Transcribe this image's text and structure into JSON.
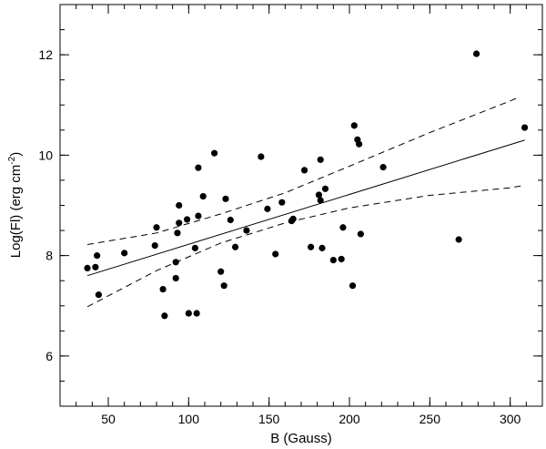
{
  "chart_data": {
    "type": "scatter",
    "title": "",
    "xlabel": "B (Gauss)",
    "ylabel_main": "Log(Fl) (erg cm",
    "ylabel_sup": "-2",
    "ylabel_tail": ")",
    "xlim": [
      20,
      320
    ],
    "ylim": [
      5,
      13
    ],
    "xticks": [
      50,
      100,
      150,
      200,
      250,
      300
    ],
    "yticks": [
      6,
      8,
      10,
      12
    ],
    "x_minor_step": 10,
    "y_minor_step": 0.5,
    "grid": false,
    "marker_color": "#000000",
    "points": [
      [
        37,
        7.75
      ],
      [
        42,
        7.77
      ],
      [
        43,
        8.0
      ],
      [
        44,
        7.22
      ],
      [
        60,
        8.05
      ],
      [
        79,
        8.2
      ],
      [
        80,
        8.56
      ],
      [
        84,
        7.33
      ],
      [
        85,
        6.8
      ],
      [
        92,
        7.55
      ],
      [
        92,
        7.87
      ],
      [
        93,
        8.45
      ],
      [
        94,
        8.65
      ],
      [
        94,
        9.0
      ],
      [
        99,
        8.72
      ],
      [
        100,
        6.85
      ],
      [
        104,
        8.15
      ],
      [
        105,
        6.85
      ],
      [
        106,
        9.75
      ],
      [
        106,
        8.79
      ],
      [
        109,
        9.18
      ],
      [
        116,
        10.04
      ],
      [
        120,
        7.68
      ],
      [
        122,
        7.4
      ],
      [
        123,
        9.13
      ],
      [
        126,
        8.71
      ],
      [
        129,
        8.17
      ],
      [
        136,
        8.5
      ],
      [
        145,
        9.97
      ],
      [
        149,
        8.93
      ],
      [
        154,
        8.03
      ],
      [
        158,
        9.06
      ],
      [
        164,
        8.69
      ],
      [
        165,
        8.73
      ],
      [
        172,
        9.7
      ],
      [
        176,
        8.17
      ],
      [
        181,
        9.21
      ],
      [
        182,
        9.1
      ],
      [
        182,
        9.91
      ],
      [
        183,
        8.15
      ],
      [
        185,
        9.33
      ],
      [
        190,
        7.91
      ],
      [
        195,
        7.93
      ],
      [
        196,
        8.56
      ],
      [
        202,
        7.4
      ],
      [
        203,
        10.59
      ],
      [
        205,
        10.31
      ],
      [
        206,
        10.22
      ],
      [
        207,
        8.43
      ],
      [
        221,
        9.76
      ],
      [
        268,
        8.32
      ],
      [
        279,
        12.02
      ],
      [
        309,
        10.55
      ]
    ],
    "fit_line": {
      "x": [
        37,
        309
      ],
      "y": [
        7.6,
        10.3
      ],
      "style": "solid"
    },
    "confidence_upper": {
      "x": [
        37,
        80,
        120,
        160,
        200,
        250,
        300,
        305
      ],
      "y": [
        8.22,
        8.45,
        8.83,
        9.25,
        9.78,
        10.45,
        11.08,
        11.15
      ],
      "style": "dashed"
    },
    "confidence_lower": {
      "x": [
        37,
        80,
        120,
        160,
        200,
        250,
        300,
        309
      ],
      "y": [
        6.98,
        7.7,
        8.25,
        8.65,
        8.95,
        9.2,
        9.35,
        9.4
      ],
      "style": "dashed"
    }
  }
}
